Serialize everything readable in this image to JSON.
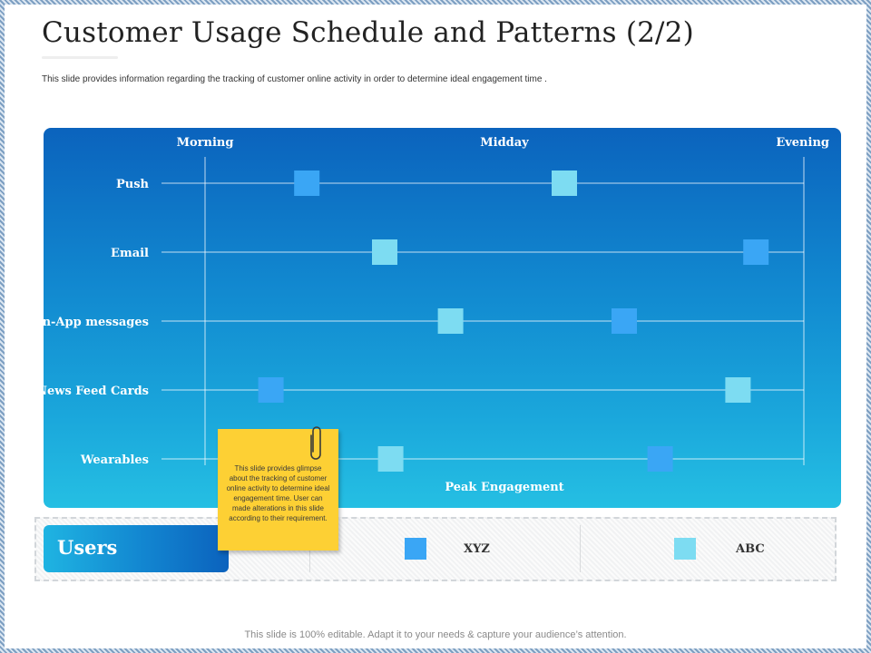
{
  "page": {
    "title": "Customer Usage Schedule and Patterns (2/2)",
    "subtitle": "This slide provides information regarding the tracking of customer online activity in order to determine ideal engagement time .",
    "footer": "This slide is 100% editable. Adapt it to your needs & capture your audience’s attention."
  },
  "chart_data": {
    "type": "scatter",
    "title": "",
    "xlabel": "Peak Engagement",
    "ylabel": "",
    "x_ticks": [
      "Morning",
      "Midday",
      "Evening"
    ],
    "xlim": [
      0,
      10
    ],
    "categories": [
      "Push",
      "Email",
      "In-App messages",
      "News Feed Cards",
      "Wearables"
    ],
    "series": [
      {
        "name": "XYZ",
        "color": "#3aa6f5",
        "values": [
          1.7,
          9.2,
          7.0,
          1.1,
          7.6
        ]
      },
      {
        "name": "ABC",
        "color": "#7ddcf2",
        "values": [
          6.0,
          3.0,
          4.1,
          8.9,
          3.1
        ]
      }
    ],
    "grid": true
  },
  "legend": {
    "users_label": "Users",
    "items": [
      {
        "label": "XYZ",
        "color": "#3aa6f5"
      },
      {
        "label": "ABC",
        "color": "#7ddcf2"
      }
    ]
  },
  "note": {
    "text": "This slide provides glimpse about the tracking of customer online activity to determine ideal engagement time. User can made alterations in this slide according to their requirement."
  }
}
